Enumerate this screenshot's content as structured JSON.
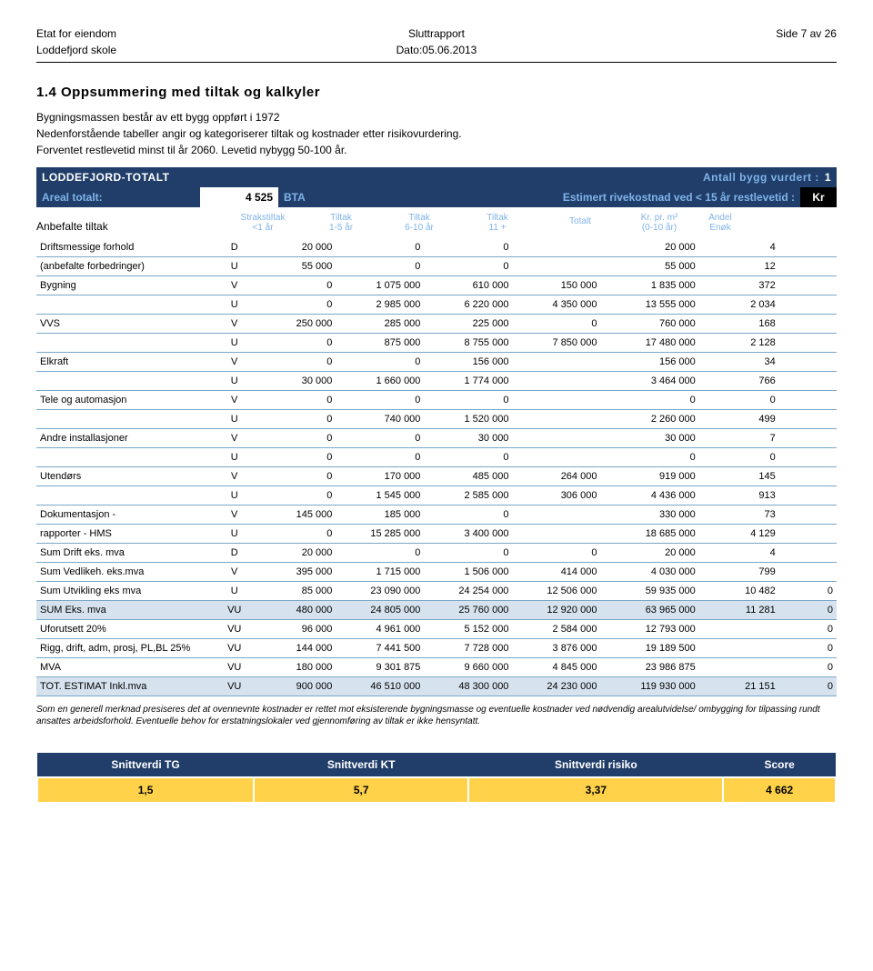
{
  "header": {
    "left1": "Etat for eiendom",
    "left2": "Loddefjord skole",
    "center1": "Sluttrapport",
    "center2": "Dato:05.06.2013",
    "right1": "Side 7 av 26"
  },
  "section": {
    "title": "1.4 Oppsummering med tiltak og kalkyler",
    "p1": "Bygningsmassen består av ett bygg oppført i 1972",
    "p2": "Nedenforstående tabeller angir og kategoriserer tiltak og kostnader etter risikovurdering.",
    "p3": "Forventet restlevetid minst til år 2060. Levetid nybygg 50-100 år."
  },
  "banner1": {
    "left": "LODDEFJORD-TOTALT",
    "rightLabel": "Antall bygg vurdert :",
    "rightNum": "1"
  },
  "banner2": {
    "lLabel": "Areal totalt:",
    "lVal": "4 525",
    "mLabel": "BTA",
    "rLabel": "Estimert rivekostnad ved < 15 år restlevetid :",
    "rVal": "Kr"
  },
  "thead": {
    "c0": "Anbefalte tiltak",
    "c1a": "Strakstiltak",
    "c1b": "<1 år",
    "c2a": "Tiltak",
    "c2b": "1-5 år",
    "c3a": "Tiltak",
    "c3b": "6-10 år",
    "c4a": "Tiltak",
    "c4b": "11 +",
    "c5": "Totalt",
    "c6a": "Kr. pr. m²",
    "c6b": "(0-10 år)",
    "c7a": "Andel",
    "c7b": "Enøk"
  },
  "rows": [
    {
      "label": "Driftsmessige forhold",
      "code": "D",
      "v": [
        "20 000",
        "0",
        "0",
        "",
        "20 000",
        "4",
        ""
      ]
    },
    {
      "label": "(anbefalte forbedringer)",
      "code": "U",
      "v": [
        "55 000",
        "0",
        "0",
        "",
        "55 000",
        "12",
        ""
      ]
    },
    {
      "label": "Bygning",
      "code": "V",
      "v": [
        "0",
        "1 075 000",
        "610 000",
        "150 000",
        "1 835 000",
        "372",
        ""
      ]
    },
    {
      "label": "",
      "code": "U",
      "v": [
        "0",
        "2 985 000",
        "6 220 000",
        "4 350 000",
        "13 555 000",
        "2 034",
        ""
      ]
    },
    {
      "label": "VVS",
      "code": "V",
      "v": [
        "250 000",
        "285 000",
        "225 000",
        "0",
        "760 000",
        "168",
        ""
      ]
    },
    {
      "label": "",
      "code": "U",
      "v": [
        "0",
        "875 000",
        "8 755 000",
        "7 850 000",
        "17 480 000",
        "2 128",
        ""
      ]
    },
    {
      "label": "Elkraft",
      "code": "V",
      "v": [
        "0",
        "0",
        "156 000",
        "",
        "156 000",
        "34",
        ""
      ]
    },
    {
      "label": "",
      "code": "U",
      "v": [
        "30 000",
        "1 660 000",
        "1 774 000",
        "",
        "3 464 000",
        "766",
        ""
      ]
    },
    {
      "label": "Tele og automasjon",
      "code": "V",
      "v": [
        "0",
        "0",
        "0",
        "",
        "0",
        "0",
        ""
      ]
    },
    {
      "label": "",
      "code": "U",
      "v": [
        "0",
        "740 000",
        "1 520 000",
        "",
        "2 260 000",
        "499",
        ""
      ]
    },
    {
      "label": "Andre installasjoner",
      "code": "V",
      "v": [
        "0",
        "0",
        "30 000",
        "",
        "30 000",
        "7",
        ""
      ]
    },
    {
      "label": "",
      "code": "U",
      "v": [
        "0",
        "0",
        "0",
        "",
        "0",
        "0",
        ""
      ]
    },
    {
      "label": "Utendørs",
      "code": "V",
      "v": [
        "0",
        "170 000",
        "485 000",
        "264 000",
        "919 000",
        "145",
        ""
      ]
    },
    {
      "label": "",
      "code": "U",
      "v": [
        "0",
        "1 545 000",
        "2 585 000",
        "306 000",
        "4 436 000",
        "913",
        ""
      ]
    },
    {
      "label": "Dokumentasjon -",
      "code": "V",
      "v": [
        "145 000",
        "185 000",
        "0",
        "",
        "330 000",
        "73",
        ""
      ]
    },
    {
      "label": "rapporter - HMS",
      "code": "U",
      "v": [
        "0",
        "15 285 000",
        "3 400 000",
        "",
        "18 685 000",
        "4 129",
        ""
      ]
    },
    {
      "label": "Sum Drift eks. mva",
      "code": "D",
      "v": [
        "20 000",
        "0",
        "0",
        "0",
        "20 000",
        "4",
        ""
      ]
    },
    {
      "label": "Sum Vedlikeh. eks.mva",
      "code": "V",
      "v": [
        "395 000",
        "1 715 000",
        "1 506 000",
        "414 000",
        "4 030 000",
        "799",
        ""
      ]
    },
    {
      "label": "Sum Utvikling eks mva",
      "code": "U",
      "v": [
        "85 000",
        "23 090 000",
        "24 254 000",
        "12 506 000",
        "59 935 000",
        "10 482",
        "0"
      ]
    },
    {
      "label": "SUM Eks. mva",
      "code": "VU",
      "v": [
        "480 000",
        "24 805 000",
        "25 760 000",
        "12 920 000",
        "63 965 000",
        "11 281",
        "0"
      ],
      "shaded": true
    },
    {
      "label": "Uforutsett 20%",
      "code": "VU",
      "v": [
        "96 000",
        "4 961 000",
        "5 152 000",
        "2 584 000",
        "12 793 000",
        "",
        "0"
      ]
    },
    {
      "label": "Rigg, drift, adm, prosj, PL,BL 25%",
      "code": "VU",
      "v": [
        "144 000",
        "7 441 500",
        "7 728 000",
        "3 876 000",
        "19 189 500",
        "",
        "0"
      ]
    },
    {
      "label": "MVA",
      "code": "VU",
      "v": [
        "180 000",
        "9 301 875",
        "9 660 000",
        "4 845 000",
        "23 986 875",
        "",
        "0"
      ]
    },
    {
      "label": "TOT. ESTIMAT Inkl.mva",
      "code": "VU",
      "v": [
        "900 000",
        "46 510 000",
        "48 300 000",
        "24 230 000",
        "119 930 000",
        "21 151",
        "0"
      ],
      "shaded": true
    }
  ],
  "footnote": "Som en generell merknad presiseres det at ovennevnte kostnader er rettet mot eksisterende bygningsmasse og eventuelle kostnader ved nødvendig arealutvidelse/ ombygging for tilpassing rundt ansattes arbeidsforhold. Eventuelle behov for erstatningslokaler ved gjennomføring av tiltak er ikke hensyntatt.",
  "summary": {
    "headers": [
      "Snittverdi TG",
      "Snittverdi KT",
      "Snittverdi risiko",
      "Score"
    ],
    "values": [
      "1,5",
      "5,7",
      "3,37",
      "4 662"
    ]
  },
  "style": {
    "bannerBg": "#213e6a",
    "bannerAccent": "#7fb3e8",
    "rowShade": "#d6e3ef",
    "summaryBg": "#ffd24a",
    "borderColor": "#7aa7c9"
  }
}
